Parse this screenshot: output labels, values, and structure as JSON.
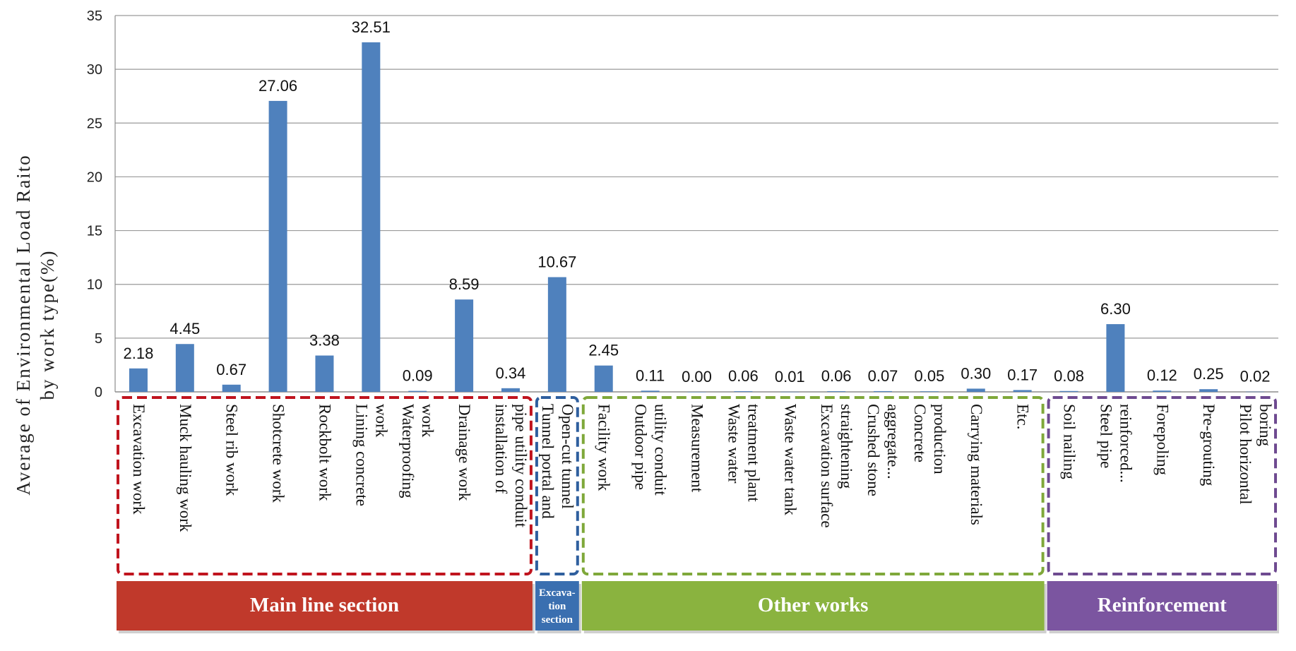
{
  "chart_data": {
    "type": "bar",
    "ylabel": [
      "Average of Environmental Load Raito",
      "by work type(%)"
    ],
    "ylim": [
      0,
      35
    ],
    "yticks": [
      0,
      5,
      10,
      15,
      20,
      25,
      30,
      35
    ],
    "grid": true,
    "bar_color": "#4f81bd",
    "categories": [
      [
        "Excavation work"
      ],
      [
        "Muck hauling work"
      ],
      [
        "Steel rib work"
      ],
      [
        "Shotcrete work"
      ],
      [
        "Rockbolt work"
      ],
      [
        "Lining concrete",
        "work"
      ],
      [
        "Waterproofing",
        "work"
      ],
      [
        "Drainage work"
      ],
      [
        "installation of",
        "pipe utility conduit"
      ],
      [
        "Tunnel portal and",
        "Open-cut tunnel"
      ],
      [
        "Facility work"
      ],
      [
        "Outdoor pipe",
        "utility conduit"
      ],
      [
        "Measurement"
      ],
      [
        "Waste water",
        "treatment plant"
      ],
      [
        "Waste water tank"
      ],
      [
        "Excavation surface",
        "straightening"
      ],
      [
        "Crushed stone",
        "aggregate..."
      ],
      [
        "Concrete",
        "production"
      ],
      [
        "Carrying materials"
      ],
      [
        "Etc."
      ],
      [
        "Soil nailing"
      ],
      [
        "Steel pipe",
        "reinforced..."
      ],
      [
        "Forepoling"
      ],
      [
        "Pre-grouting"
      ],
      [
        "Pilot horizontal",
        "boring"
      ]
    ],
    "values": [
      2.18,
      4.45,
      0.67,
      27.06,
      3.38,
      32.51,
      0.09,
      8.59,
      0.34,
      10.67,
      2.45,
      0.11,
      0.0,
      0.06,
      0.01,
      0.06,
      0.07,
      0.05,
      0.3,
      0.17,
      0.08,
      6.3,
      0.12,
      0.25,
      0.02
    ],
    "data_labels": [
      "2.18",
      "4.45",
      "0.67",
      "27.06",
      "3.38",
      "32.51",
      "0.09",
      "8.59",
      "0.34",
      "10.67",
      "2.45",
      "0.11",
      "0.00",
      "0.06",
      "0.01",
      "0.06",
      "0.07",
      "0.05",
      "0.30",
      "0.17",
      "0.08",
      "6.30",
      "0.12",
      "0.25",
      "0.02"
    ],
    "groups": [
      {
        "name": "Main line section",
        "name_lines": [
          "Main line section"
        ],
        "start": 0,
        "end": 8,
        "color": "#c0392b",
        "border": "#c0141e"
      },
      {
        "name": "Excavation section",
        "name_lines": [
          "Excava-",
          "tion",
          "section"
        ],
        "start": 9,
        "end": 9,
        "color": "#3a6fb0",
        "border": "#2f5f9e"
      },
      {
        "name": "Other works",
        "name_lines": [
          "Other works"
        ],
        "start": 10,
        "end": 19,
        "color": "#8ab33f",
        "border": "#7fa83a"
      },
      {
        "name": "Reinforcement",
        "name_lines": [
          "Reinforcement"
        ],
        "start": 20,
        "end": 24,
        "color": "#7b55a0",
        "border": "#6e4a90"
      }
    ]
  }
}
